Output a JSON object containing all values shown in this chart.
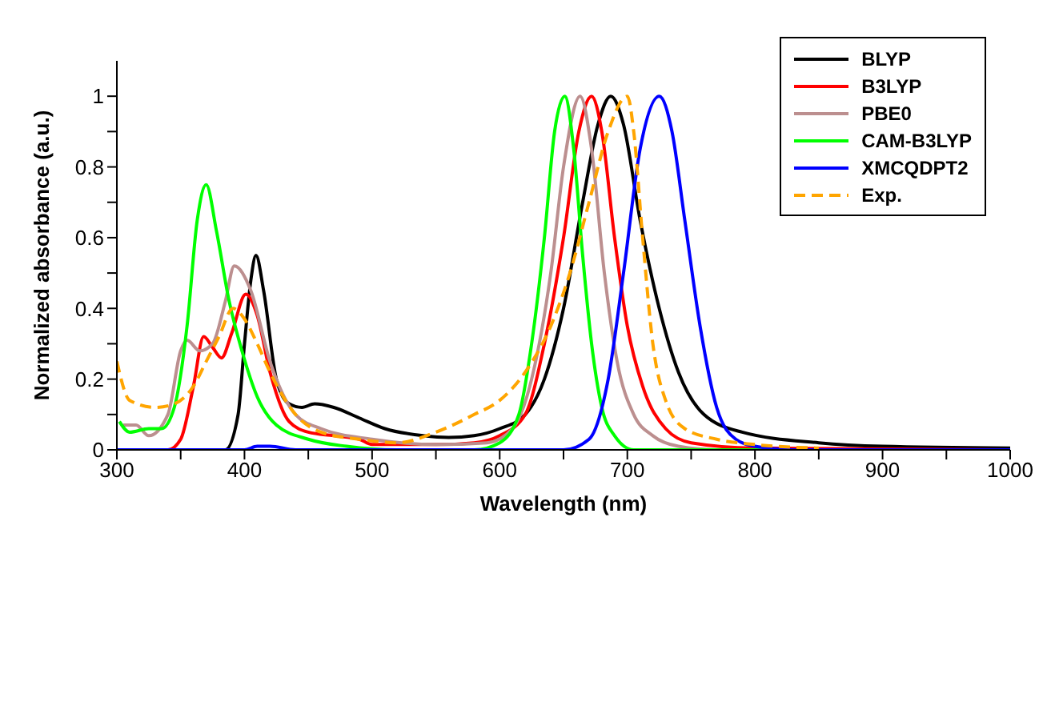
{
  "chart_data": {
    "type": "line",
    "xlabel": "Wavelength (nm)",
    "ylabel": "Normalized absorbance (a.u.)",
    "xlim": [
      300,
      1000
    ],
    "ylim": [
      0,
      1.1
    ],
    "xticks": [
      300,
      {
        "value": 350,
        "label": null
      },
      400,
      {
        "value": 450,
        "label": null
      },
      500,
      {
        "value": 550,
        "label": null
      },
      600,
      {
        "value": 650,
        "label": null
      },
      700,
      {
        "value": 750,
        "label": null
      },
      800,
      {
        "value": 850,
        "label": null
      },
      900,
      {
        "value": 950,
        "label": null
      },
      1000
    ],
    "yticks": [
      0,
      {
        "value": 0.1,
        "label": null
      },
      0.2,
      {
        "value": 0.3,
        "label": null
      },
      0.4,
      {
        "value": 0.5,
        "label": null
      },
      0.6,
      {
        "value": 0.7,
        "label": null
      },
      0.8,
      {
        "value": 0.9,
        "label": null
      },
      1
    ],
    "grid": false,
    "legend": "top right",
    "marker": "none",
    "series": [
      {
        "name": "BLYP",
        "color": "#000000",
        "line_style": "solid",
        "x": [
          300,
          340,
          380,
          385,
          395,
          400,
          405,
          409,
          415,
          425,
          435,
          445,
          455,
          470,
          490,
          510,
          540,
          560,
          580,
          600,
          620,
          635,
          650,
          665,
          677,
          687,
          697,
          710,
          725,
          740,
          760,
          790,
          850,
          900,
          1000
        ],
        "values": [
          0,
          0,
          0,
          0,
          0.1,
          0.3,
          0.48,
          0.55,
          0.45,
          0.2,
          0.13,
          0.12,
          0.13,
          0.12,
          0.09,
          0.06,
          0.04,
          0.035,
          0.04,
          0.06,
          0.1,
          0.2,
          0.4,
          0.7,
          0.92,
          1.0,
          0.92,
          0.65,
          0.4,
          0.22,
          0.1,
          0.05,
          0.02,
          0.01,
          0.005
        ]
      },
      {
        "name": "B3LYP",
        "color": "#ff0000",
        "line_style": "solid",
        "x": [
          300,
          340,
          350,
          360,
          368,
          375,
          382,
          390,
          401,
          410,
          420,
          435,
          450,
          470,
          490,
          500,
          550,
          580,
          600,
          620,
          635,
          650,
          662,
          672,
          680,
          690,
          700,
          712,
          730,
          750,
          800,
          1000
        ],
        "values": [
          0,
          0,
          0.03,
          0.18,
          0.32,
          0.29,
          0.26,
          0.33,
          0.44,
          0.38,
          0.22,
          0.08,
          0.05,
          0.04,
          0.03,
          0.015,
          0.015,
          0.02,
          0.04,
          0.1,
          0.3,
          0.6,
          0.9,
          1.0,
          0.9,
          0.6,
          0.35,
          0.18,
          0.06,
          0.02,
          0.005,
          0
        ]
      },
      {
        "name": "PBE0",
        "color": "#bc8f8f",
        "line_style": "solid",
        "x": [
          305,
          315,
          325,
          340,
          350,
          355,
          365,
          375,
          385,
          392,
          405,
          420,
          440,
          460,
          500,
          550,
          590,
          610,
          625,
          640,
          650,
          663,
          672,
          682,
          692,
          705,
          720,
          740,
          770,
          1000
        ],
        "values": [
          0.07,
          0.07,
          0.04,
          0.1,
          0.28,
          0.31,
          0.28,
          0.3,
          0.42,
          0.52,
          0.45,
          0.25,
          0.1,
          0.06,
          0.03,
          0.015,
          0.02,
          0.06,
          0.2,
          0.5,
          0.8,
          1.0,
          0.85,
          0.5,
          0.25,
          0.1,
          0.04,
          0.01,
          0,
          0
        ]
      },
      {
        "name": "CAM-B3LYP",
        "color": "#00ff00",
        "line_style": "solid",
        "x": [
          302,
          310,
          325,
          335,
          345,
          355,
          363,
          370,
          378,
          388,
          398,
          410,
          425,
          450,
          480,
          520,
          580,
          600,
          615,
          625,
          635,
          643,
          651,
          658,
          665,
          672,
          680,
          690,
          705,
          1000
        ],
        "values": [
          0.08,
          0.05,
          0.06,
          0.06,
          0.12,
          0.35,
          0.65,
          0.75,
          0.62,
          0.42,
          0.28,
          0.15,
          0.07,
          0.03,
          0.01,
          0,
          0,
          0.02,
          0.1,
          0.3,
          0.6,
          0.9,
          1.0,
          0.85,
          0.55,
          0.3,
          0.12,
          0.04,
          0,
          0
        ]
      },
      {
        "name": "XMCQDPT2",
        "color": "#0000ff",
        "line_style": "solid",
        "x": [
          300,
          400,
          410,
          420,
          440,
          650,
          670,
          685,
          697,
          710,
          725,
          735,
          745,
          757,
          770,
          785,
          800,
          830,
          1000
        ],
        "values": [
          0,
          0,
          0.01,
          0.01,
          0,
          0,
          0.03,
          0.2,
          0.5,
          0.85,
          1.0,
          0.9,
          0.65,
          0.35,
          0.12,
          0.03,
          0.01,
          0,
          0
        ]
      },
      {
        "name": "Exp.",
        "color": "#ffa500",
        "line_style": "dashed",
        "x": [
          300,
          310,
          330,
          345,
          360,
          370,
          380,
          391,
          400,
          410,
          420,
          440,
          460,
          490,
          520,
          550,
          580,
          600,
          620,
          640,
          655,
          670,
          685,
          700,
          705,
          712,
          720,
          730,
          745,
          770,
          800,
          850
        ],
        "values": [
          0.25,
          0.14,
          0.12,
          0.13,
          0.18,
          0.25,
          0.32,
          0.4,
          0.37,
          0.3,
          0.22,
          0.1,
          0.05,
          0.03,
          0.02,
          0.05,
          0.1,
          0.14,
          0.22,
          0.35,
          0.5,
          0.7,
          0.9,
          1.0,
          0.9,
          0.6,
          0.3,
          0.14,
          0.06,
          0.03,
          0.015,
          0.005
        ]
      }
    ]
  }
}
